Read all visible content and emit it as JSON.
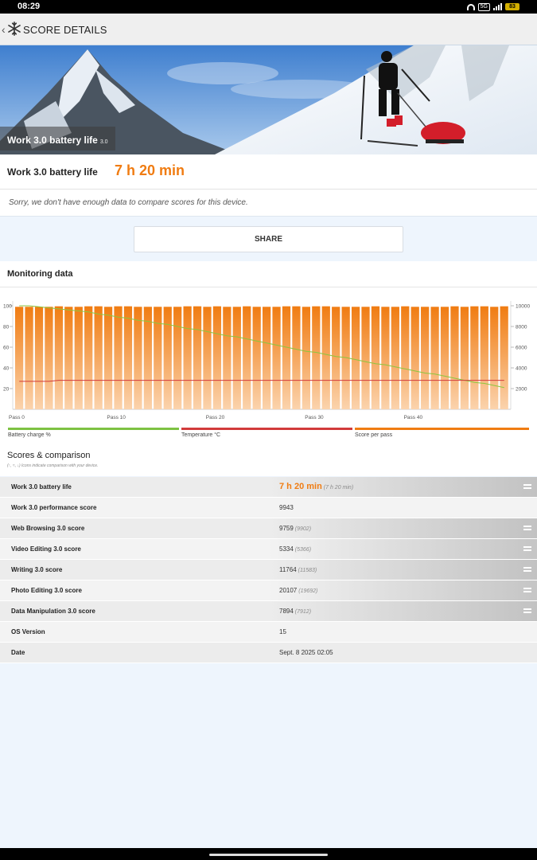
{
  "status_bar": {
    "time": "08:29",
    "network": "5G",
    "battery": "83"
  },
  "header": {
    "title": "SCORE DETAILS"
  },
  "hero": {
    "label": "Work 3.0 battery life",
    "version": "3.0"
  },
  "result": {
    "name": "Work 3.0 battery life",
    "score": "7 h 20 min"
  },
  "notice": "Sorry, we don't have enough data to compare scores for this device.",
  "share_label": "SHARE",
  "monitoring": {
    "title": "Monitoring data"
  },
  "colors": {
    "accent": "#f07c12",
    "battery": "#7dc242",
    "temperature": "#d23b3b",
    "score": "#f07c12"
  },
  "chart_data": {
    "type": "bar",
    "title": "",
    "x_tick_labels": [
      "Pass 0",
      "Pass 10",
      "Pass 20",
      "Pass 30",
      "Pass 40"
    ],
    "passes": [
      0,
      1,
      2,
      3,
      4,
      5,
      6,
      7,
      8,
      9,
      10,
      11,
      12,
      13,
      14,
      15,
      16,
      17,
      18,
      19,
      20,
      21,
      22,
      23,
      24,
      25,
      26,
      27,
      28,
      29,
      30,
      31,
      32,
      33,
      34,
      35,
      36,
      37,
      38,
      39,
      40,
      41,
      42,
      43,
      44,
      45,
      46,
      47,
      48,
      49
    ],
    "left_axis": {
      "ylim": [
        0,
        100
      ],
      "ticks": [
        20,
        40,
        60,
        80,
        100
      ]
    },
    "right_axis": {
      "ylim": [
        0,
        10000
      ],
      "ticks": [
        2000,
        4000,
        6000,
        8000,
        10000
      ]
    },
    "series": [
      {
        "name": "Score per pass",
        "axis": "right",
        "kind": "bar",
        "values": [
          9900,
          9900,
          9900,
          9900,
          9950,
          9900,
          9900,
          9950,
          9950,
          9900,
          9950,
          9950,
          9900,
          9900,
          9900,
          9900,
          9900,
          9950,
          9950,
          9900,
          9950,
          9900,
          9900,
          9950,
          9900,
          9900,
          9900,
          9950,
          9950,
          9900,
          9950,
          9950,
          9900,
          9900,
          9900,
          9900,
          9950,
          9900,
          9900,
          9950,
          9900,
          9900,
          9900,
          9900,
          9950,
          9900,
          9950,
          9950,
          9900,
          9950
        ]
      },
      {
        "name": "Battery charge %",
        "axis": "left",
        "kind": "line",
        "values": [
          100,
          100,
          99,
          98,
          97,
          96,
          95,
          94,
          92,
          91,
          89,
          88,
          86,
          85,
          83,
          82,
          80,
          78,
          77,
          75,
          73,
          71,
          70,
          68,
          66,
          64,
          62,
          60,
          58,
          56,
          55,
          53,
          51,
          50,
          48,
          46,
          44,
          43,
          41,
          39,
          37,
          35,
          34,
          32,
          30,
          28,
          26,
          25,
          23,
          21
        ]
      },
      {
        "name": "Temperature °C",
        "axis": "left",
        "kind": "line",
        "values": [
          27,
          27,
          27,
          27,
          28,
          28,
          28,
          28,
          28,
          28,
          28,
          28,
          28,
          28,
          28,
          28,
          28,
          28,
          28,
          28,
          28,
          28,
          28,
          28,
          28,
          28,
          28,
          28,
          28,
          28,
          28,
          28,
          28,
          28,
          28,
          28,
          28,
          28,
          28,
          28,
          28,
          28,
          28,
          28,
          28,
          28,
          28,
          28,
          28,
          28
        ]
      }
    ],
    "grid": false
  },
  "legend": [
    {
      "label": "Battery charge %"
    },
    {
      "label": "Temperature °C"
    },
    {
      "label": "Score per pass"
    }
  ],
  "scores": {
    "title": "Scores & comparison",
    "note": "(↑, ≈, ↓) Icons indicate comparison with your device.",
    "rows": [
      {
        "label": "Work 3.0 battery life",
        "value": "7 h 20 min",
        "compare": "(7 h 20 min)",
        "icon": "equal-icon"
      },
      {
        "label": "Work 3.0 performance score",
        "value": "9943",
        "compare": ""
      },
      {
        "label": "Web Browsing 3.0 score",
        "value": "9759",
        "compare": "(9902)",
        "icon": "equal-icon"
      },
      {
        "label": "Video Editing 3.0 score",
        "value": "5334",
        "compare": "(5366)",
        "icon": "equal-icon"
      },
      {
        "label": "Writing 3.0 score",
        "value": "11764",
        "compare": "(11583)",
        "icon": "equal-icon"
      },
      {
        "label": "Photo Editing 3.0 score",
        "value": "20107",
        "compare": "(19692)",
        "icon": "equal-icon"
      },
      {
        "label": "Data Manipulation 3.0 score",
        "value": "7894",
        "compare": "(7912)",
        "icon": "equal-icon"
      },
      {
        "label": "OS Version",
        "value": "15",
        "compare": ""
      },
      {
        "label": "Date",
        "value": "Sept. 8 2025 02:05",
        "compare": ""
      }
    ]
  }
}
